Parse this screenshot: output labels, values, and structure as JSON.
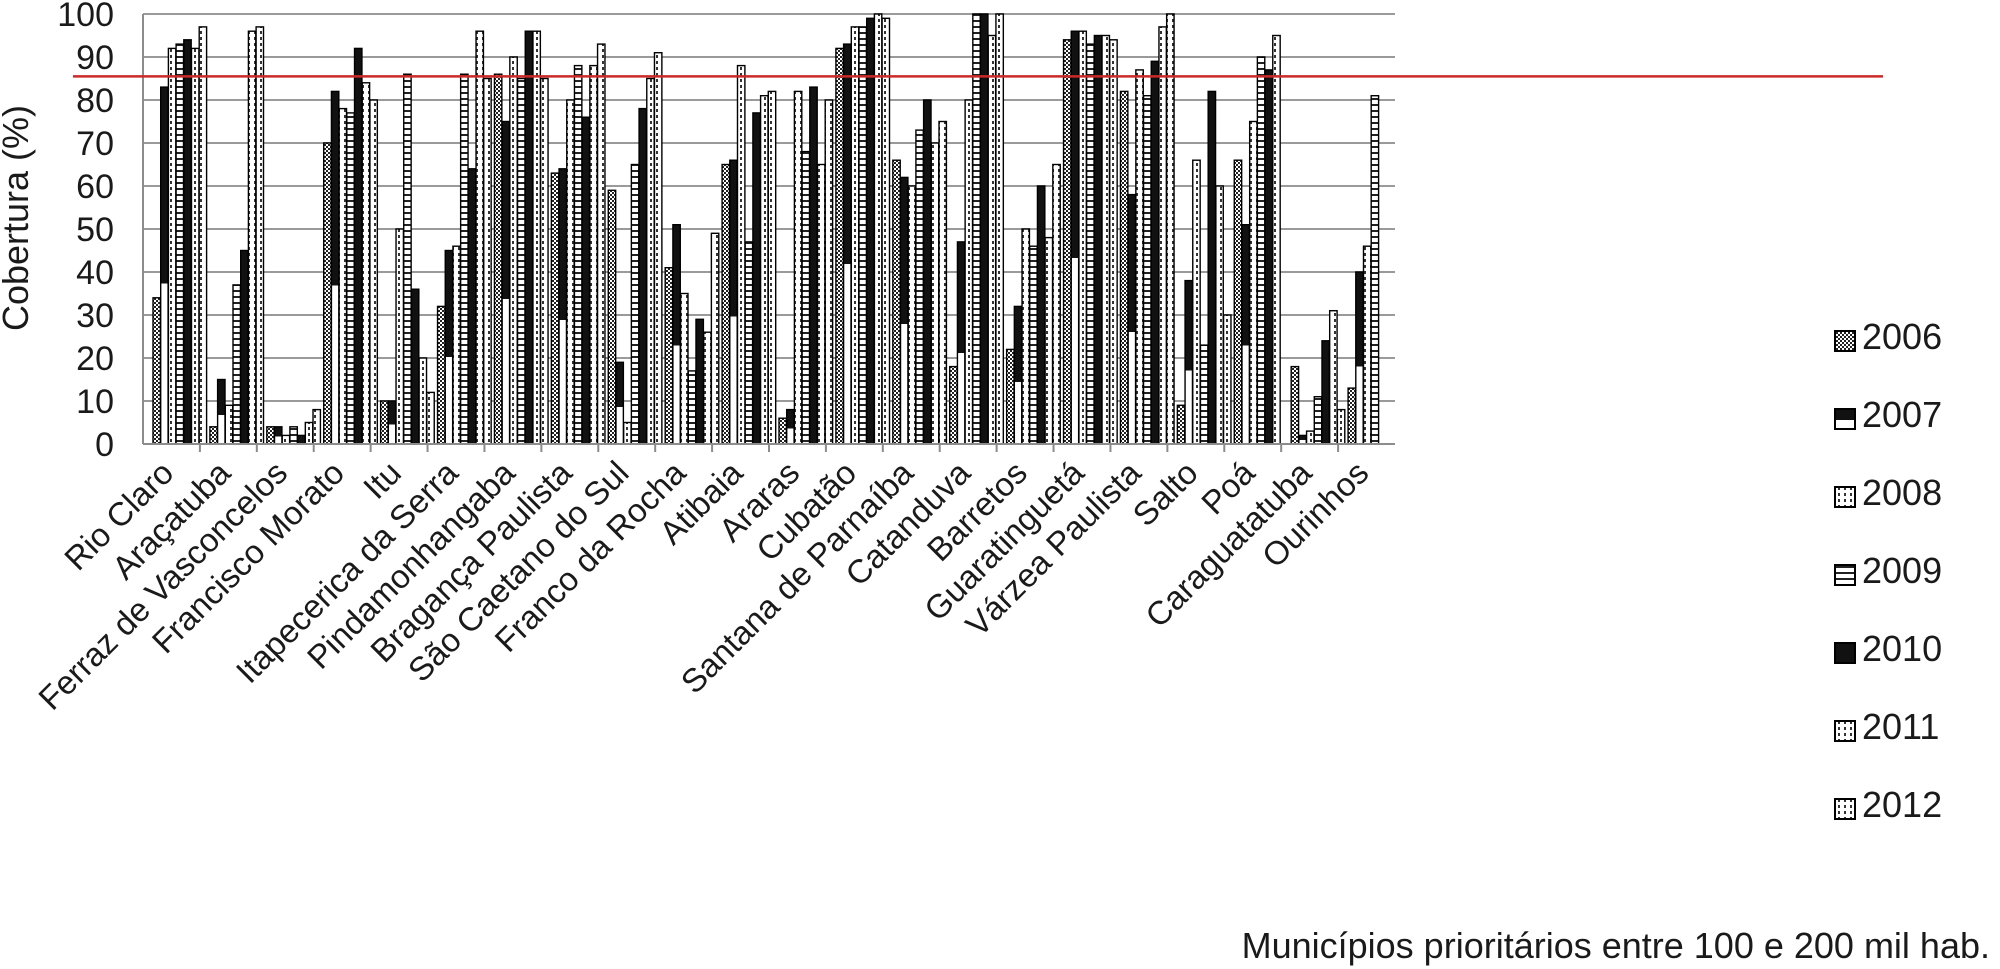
{
  "chart_data": {
    "type": "bar",
    "title": "",
    "ylabel": "Cobertura (%)",
    "xlabel": "Municípios prioritários entre 100 e 200 mil hab.",
    "ylim": [
      0,
      100
    ],
    "yticks": [
      0,
      10,
      20,
      30,
      40,
      50,
      60,
      70,
      80,
      90,
      100
    ],
    "grid": true,
    "legend_position": "right",
    "reference_line": {
      "value": 85.5,
      "color": "#cc2a2a"
    },
    "categories": [
      "Rio Claro",
      "Araçatuba",
      "Ferraz de Vasconcelos",
      "Francisco Morato",
      "Itu",
      "Itapecerica da Serra",
      "Pindamonhangaba",
      "Bragança Paulista",
      "São Caetano do Sul",
      "Franco da Rocha",
      "Atibaia",
      "Araras",
      "Cubatão",
      "Santana de Parnaíba",
      "Catanduva",
      "Barretos",
      "Guaratinguetá",
      "Várzea Paulista",
      "Salto",
      "Poá",
      "Caraguatatuba",
      "Ourinhos"
    ],
    "series": [
      {
        "name": "2006",
        "pattern": "checker",
        "values": [
          34,
          4,
          4,
          70,
          10,
          32,
          86,
          63,
          59,
          41,
          65,
          6,
          92,
          66,
          18,
          22,
          94,
          82,
          9,
          66,
          18,
          13
        ]
      },
      {
        "name": "2007",
        "pattern": "black-top",
        "values": [
          83,
          15,
          4,
          82,
          10,
          45,
          75,
          64,
          19,
          51,
          66,
          8,
          93,
          62,
          47,
          32,
          96,
          58,
          38,
          51,
          2,
          40
        ]
      },
      {
        "name": "2008",
        "pattern": "white-dot",
        "values": [
          92,
          9,
          2,
          78,
          50,
          46,
          90,
          80,
          5,
          35,
          88,
          82,
          97,
          60,
          80,
          50,
          96,
          87,
          66,
          75,
          3,
          46
        ]
      },
      {
        "name": "2009",
        "pattern": "hstripe",
        "values": [
          93,
          37,
          4,
          77,
          86,
          86,
          85,
          88,
          65,
          17,
          47,
          68,
          97,
          73,
          100,
          46,
          93,
          81,
          23,
          90,
          11,
          81
        ]
      },
      {
        "name": "2010",
        "pattern": "black",
        "values": [
          94,
          45,
          2,
          92,
          36,
          64,
          96,
          76,
          78,
          29,
          77,
          83,
          99,
          80,
          100,
          60,
          95,
          89,
          82,
          87,
          24,
          0
        ]
      },
      {
        "name": "2011",
        "pattern": "white-dot",
        "values": [
          92,
          96,
          5,
          84,
          20,
          96,
          96,
          88,
          85,
          26,
          81,
          65,
          100,
          70,
          95,
          48,
          95,
          97,
          60,
          95,
          31,
          0
        ]
      },
      {
        "name": "2012",
        "pattern": "white-dot",
        "values": [
          97,
          97,
          8,
          80,
          12,
          85,
          85,
          93,
          91,
          49,
          82,
          80,
          99,
          75,
          100,
          65,
          94,
          100,
          30,
          0,
          8,
          0
        ]
      }
    ]
  }
}
